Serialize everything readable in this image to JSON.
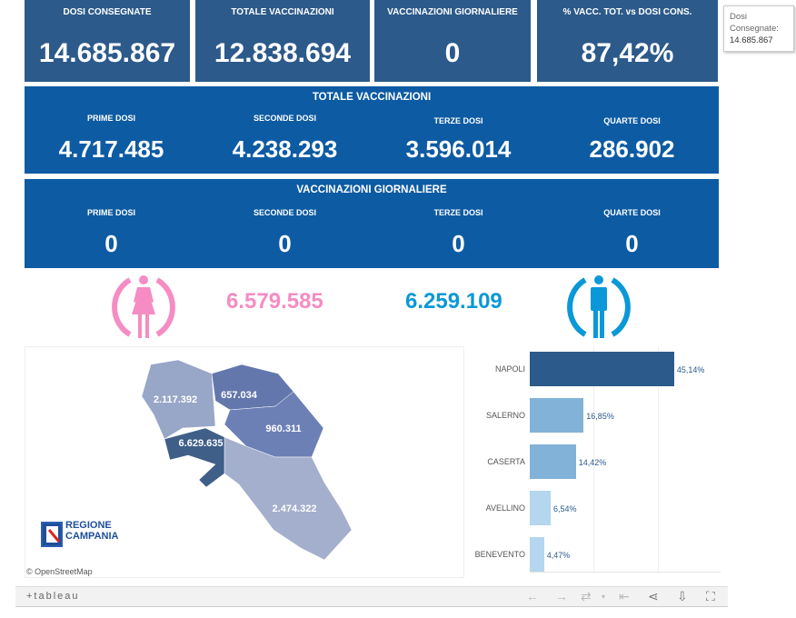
{
  "top_tiles": [
    {
      "label": "DOSI  CONSEGNATE",
      "value": "14.685.867"
    },
    {
      "label": "TOTALE VACCINAZIONI",
      "value": "12.838.694"
    },
    {
      "label": "VACCINAZIONI GIORNALIERE",
      "value": "0"
    },
    {
      "label": "% VACC. TOT. vs DOSI CONS.",
      "value": "87,42%"
    }
  ],
  "tooltip": {
    "label": "Dosi Consegnate:",
    "value": "14.685.867"
  },
  "totale": {
    "title": "TOTALE VACCINAZIONI",
    "cells": [
      {
        "label": "PRIME DOSI",
        "value": "4.717.485"
      },
      {
        "label": "SECONDE DOSI",
        "value": "4.238.293"
      },
      {
        "label": "TERZE DOSI",
        "value": "3.596.014"
      },
      {
        "label": "QUARTE DOSI",
        "value": "286.902"
      }
    ]
  },
  "giornaliere": {
    "title": "VACCINAZIONI GIORNALIERE",
    "cells": [
      {
        "label": "PRIME DOSI",
        "value": "0"
      },
      {
        "label": "SECONDE DOSI",
        "value": "0"
      },
      {
        "label": "TERZE DOSI",
        "value": "0"
      },
      {
        "label": "QUARTE DOSI",
        "value": "0"
      }
    ]
  },
  "gender": {
    "female": "6.579.585",
    "male": "6.259.109",
    "female_color": "#f58cc3",
    "male_color": "#0a98d8",
    "female_icon": "female-icon",
    "male_icon": "male-icon"
  },
  "map": {
    "regions": [
      {
        "name": "Caserta",
        "value": "2.117.392",
        "color": "#98a6c8"
      },
      {
        "name": "Benevento",
        "value": "657.034",
        "color": "#6477ad"
      },
      {
        "name": "Avellino",
        "value": "960.311",
        "color": "#6c80b6"
      },
      {
        "name": "Napoli",
        "value": "6.629.635",
        "color": "#3f5f88"
      },
      {
        "name": "Salerno",
        "value": "2.474.322",
        "color": "#a4afcd"
      }
    ],
    "logo": "REGIONE CAMPANIA",
    "attribution": "© OpenStreetMap"
  },
  "chart_data": {
    "type": "bar",
    "orientation": "horizontal",
    "categories": [
      "NAPOLI",
      "SALERNO",
      "CASERTA",
      "AVELLINO",
      "BENEVENTO"
    ],
    "values": [
      45.14,
      16.85,
      14.42,
      6.54,
      4.47
    ],
    "labels": [
      "45,14%",
      "16,85%",
      "14,42%",
      "6,54%",
      "4,47%"
    ],
    "colors": [
      "#2c5a8a",
      "#82b2d8",
      "#82b2d8",
      "#b4d6ee",
      "#b4d6ee"
    ],
    "xlim": [
      0,
      60
    ],
    "grid": true
  },
  "toolbar": {
    "brand": "+tableau",
    "icons": [
      "undo-icon",
      "redo-icon",
      "revert-icon",
      "dropdown-icon",
      "reset-icon",
      "share-icon",
      "download-icon",
      "fullscreen-icon"
    ]
  }
}
